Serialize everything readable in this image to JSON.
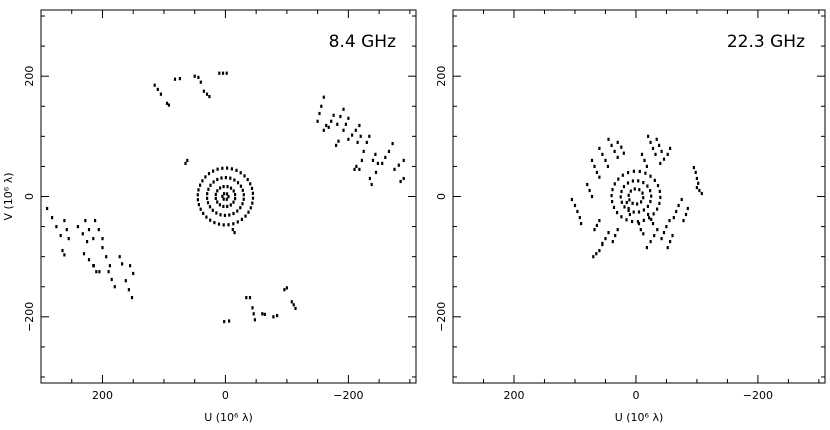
{
  "chart_data": [
    {
      "type": "scatter",
      "title": "8.4 GHz",
      "xlabel": "U (10⁶ λ)",
      "ylabel": "V (10⁶ λ)",
      "xlim": [
        300,
        -310
      ],
      "ylim": [
        -310,
        310
      ],
      "x_reversed": true,
      "x_ticks": [
        200,
        0,
        -200
      ],
      "x_tick_labels": [
        "200",
        "0",
        "−200"
      ],
      "y_ticks": [
        -200,
        0,
        200
      ],
      "y_tick_labels": [
        "−200",
        "0",
        "200"
      ],
      "grid": false,
      "marker_color": "#000000",
      "tracks": [
        [
          [
            290,
            -20
          ],
          [
            282,
            -35
          ],
          [
            275,
            -50
          ],
          [
            268,
            -65
          ]
        ],
        [
          [
            262,
            -40
          ],
          [
            258,
            -55
          ],
          [
            255,
            -70
          ]
        ],
        [
          [
            240,
            -50
          ],
          [
            232,
            -62
          ],
          [
            225,
            -75
          ]
        ],
        [
          [
            228,
            -40
          ],
          [
            222,
            -55
          ],
          [
            215,
            -70
          ]
        ],
        [
          [
            212,
            -40
          ],
          [
            206,
            -55
          ],
          [
            200,
            -70
          ]
        ],
        [
          [
            230,
            -95
          ],
          [
            222,
            -105
          ],
          [
            214,
            -115
          ],
          [
            205,
            -125
          ]
        ],
        [
          [
            200,
            -85
          ],
          [
            194,
            -100
          ],
          [
            188,
            -115
          ]
        ],
        [
          [
            190,
            -125
          ],
          [
            185,
            -138
          ],
          [
            180,
            -150
          ]
        ],
        [
          [
            172,
            -100
          ],
          [
            168,
            -112
          ]
        ],
        [
          [
            162,
            -140
          ],
          [
            157,
            -155
          ],
          [
            152,
            -168
          ]
        ],
        [
          [
            155,
            -115
          ],
          [
            150,
            -128
          ]
        ],
        [
          [
            215,
            -115
          ],
          [
            210,
            -125
          ]
        ],
        [
          [
            265,
            -90
          ],
          [
            262,
            -97
          ]
        ],
        [
          [
            115,
            185
          ],
          [
            110,
            178
          ],
          [
            105,
            170
          ]
        ],
        [
          [
            95,
            155
          ],
          [
            92,
            152
          ]
        ],
        [
          [
            82,
            195
          ],
          [
            74,
            196
          ]
        ],
        [
          [
            50,
            200
          ],
          [
            44,
            198
          ],
          [
            40,
            190
          ]
        ],
        [
          [
            35,
            175
          ],
          [
            30,
            170
          ],
          [
            26,
            166
          ]
        ],
        [
          [
            10,
            205
          ],
          [
            4,
            205
          ],
          [
            -2,
            205
          ]
        ],
        [
          [
            65,
            55
          ],
          [
            62,
            60
          ]
        ],
        [
          [
            -12,
            -55
          ],
          [
            -15,
            -60
          ]
        ],
        [
          [
            -150,
            125
          ],
          [
            -153,
            138
          ],
          [
            -156,
            150
          ],
          [
            -160,
            165
          ]
        ],
        [
          [
            -168,
            115
          ],
          [
            -172,
            125
          ],
          [
            -176,
            135
          ]
        ],
        [
          [
            -182,
            120
          ],
          [
            -187,
            133
          ],
          [
            -192,
            145
          ]
        ],
        [
          [
            -192,
            110
          ],
          [
            -196,
            120
          ],
          [
            -200,
            130
          ]
        ],
        [
          [
            -200,
            95
          ],
          [
            -206,
            102
          ],
          [
            -212,
            110
          ],
          [
            -218,
            118
          ]
        ],
        [
          [
            -225,
            75
          ],
          [
            -222,
            60
          ],
          [
            -218,
            45
          ]
        ],
        [
          [
            -230,
            90
          ],
          [
            -234,
            100
          ]
        ],
        [
          [
            -240,
            60
          ],
          [
            -244,
            70
          ]
        ],
        [
          [
            -245,
            40
          ],
          [
            -248,
            55
          ]
        ],
        [
          [
            -255,
            55
          ],
          [
            -260,
            65
          ],
          [
            -266,
            75
          ],
          [
            -272,
            88
          ]
        ],
        [
          [
            -275,
            45
          ],
          [
            -282,
            52
          ],
          [
            -290,
            60
          ]
        ],
        [
          [
            -285,
            25
          ],
          [
            -290,
            30
          ]
        ],
        [
          [
            -215,
            90
          ],
          [
            -220,
            100
          ]
        ],
        [
          [
            -235,
            30
          ],
          [
            -238,
            20
          ]
        ],
        [
          [
            -180,
            85
          ],
          [
            -184,
            92
          ]
        ],
        [
          [
            -160,
            110
          ],
          [
            -164,
            118
          ]
        ],
        [
          [
            -210,
            45
          ],
          [
            -213,
            50
          ]
        ],
        [
          [
            -6,
            -207
          ],
          [
            2,
            -208
          ]
        ],
        [
          [
            -34,
            -168
          ],
          [
            -40,
            -168
          ]
        ],
        [
          [
            -44,
            -185
          ],
          [
            -46,
            -195
          ],
          [
            -48,
            -205
          ]
        ],
        [
          [
            -78,
            -200
          ],
          [
            -84,
            -198
          ]
        ],
        [
          [
            -96,
            -155
          ],
          [
            -100,
            -152
          ]
        ],
        [
          [
            -108,
            -175
          ],
          [
            -111,
            -180
          ],
          [
            -114,
            -186
          ]
        ],
        [
          [
            -60,
            -195
          ],
          [
            -64,
            -196
          ]
        ]
      ],
      "core_rings": [
        {
          "radius": 45,
          "count": 36
        },
        {
          "radius": 30,
          "count": 26
        },
        {
          "radius": 16,
          "count": 16
        },
        {
          "radius": 5,
          "count": 6
        }
      ]
    },
    {
      "type": "scatter",
      "title": "22.3 GHz",
      "xlabel": "U (10⁶ λ)",
      "ylabel": "",
      "xlim": [
        300,
        -310
      ],
      "ylim": [
        -310,
        310
      ],
      "x_reversed": true,
      "x_ticks": [
        200,
        0,
        -200
      ],
      "x_tick_labels": [
        "200",
        "0",
        "−200"
      ],
      "y_ticks": [
        -200,
        0,
        200
      ],
      "y_tick_labels": [
        "−200",
        "0",
        "200"
      ],
      "grid": false,
      "marker_color": "#000000",
      "tracks": [
        [
          [
            105,
            -5
          ],
          [
            100,
            -15
          ],
          [
            96,
            -25
          ],
          [
            92,
            -35
          ],
          [
            90,
            -45
          ]
        ],
        [
          [
            80,
            20
          ],
          [
            76,
            10
          ],
          [
            72,
            0
          ]
        ],
        [
          [
            72,
            60
          ],
          [
            68,
            50
          ],
          [
            64,
            40
          ],
          [
            60,
            32
          ]
        ],
        [
          [
            60,
            80
          ],
          [
            55,
            70
          ],
          [
            50,
            60
          ],
          [
            46,
            50
          ]
        ],
        [
          [
            45,
            95
          ],
          [
            40,
            85
          ],
          [
            35,
            75
          ],
          [
            30,
            65
          ]
        ],
        [
          [
            30,
            90
          ],
          [
            24,
            82
          ],
          [
            20,
            72
          ]
        ],
        [
          [
            -20,
            100
          ],
          [
            -24,
            90
          ],
          [
            -28,
            80
          ],
          [
            -32,
            70
          ]
        ],
        [
          [
            -34,
            95
          ],
          [
            -38,
            85
          ],
          [
            -42,
            75
          ]
        ],
        [
          [
            -40,
            55
          ],
          [
            -46,
            62
          ],
          [
            -52,
            70
          ],
          [
            -56,
            80
          ]
        ],
        [
          [
            -10,
            70
          ],
          [
            -14,
            60
          ],
          [
            -18,
            50
          ]
        ],
        [
          [
            -95,
            48
          ],
          [
            -98,
            40
          ],
          [
            -100,
            30
          ],
          [
            -102,
            22
          ]
        ],
        [
          [
            -100,
            15
          ],
          [
            -104,
            10
          ],
          [
            -108,
            5
          ]
        ],
        [
          [
            -75,
            -5
          ],
          [
            -70,
            -15
          ],
          [
            -66,
            -25
          ],
          [
            -62,
            -35
          ]
        ],
        [
          [
            -85,
            -20
          ],
          [
            -82,
            -30
          ],
          [
            -78,
            -40
          ]
        ],
        [
          [
            -55,
            -40
          ],
          [
            -50,
            -50
          ],
          [
            -46,
            -60
          ],
          [
            -42,
            -70
          ]
        ],
        [
          [
            -35,
            -55
          ],
          [
            -30,
            -65
          ],
          [
            -24,
            -75
          ],
          [
            -18,
            -85
          ]
        ],
        [
          [
            -60,
            -65
          ],
          [
            -56,
            -75
          ],
          [
            -52,
            -85
          ]
        ],
        [
          [
            55,
            -80
          ],
          [
            60,
            -90
          ],
          [
            65,
            -95
          ],
          [
            70,
            -100
          ]
        ],
        [
          [
            45,
            -60
          ],
          [
            50,
            -70
          ],
          [
            55,
            -78
          ]
        ],
        [
          [
            30,
            -55
          ],
          [
            34,
            -65
          ],
          [
            38,
            -75
          ]
        ],
        [
          [
            60,
            -40
          ],
          [
            64,
            -48
          ],
          [
            68,
            -55
          ]
        ],
        [
          [
            -5,
            -45
          ],
          [
            -8,
            -55
          ],
          [
            -12,
            -62
          ]
        ],
        [
          [
            -20,
            -30
          ],
          [
            -25,
            -38
          ],
          [
            -28,
            -45
          ]
        ],
        [
          [
            15,
            -10
          ],
          [
            12,
            -20
          ],
          [
            10,
            -30
          ]
        ]
      ],
      "core_rings": [
        {
          "radius": 40,
          "count": 26
        },
        {
          "radius": 25,
          "count": 18
        },
        {
          "radius": 12,
          "count": 10
        }
      ]
    }
  ]
}
